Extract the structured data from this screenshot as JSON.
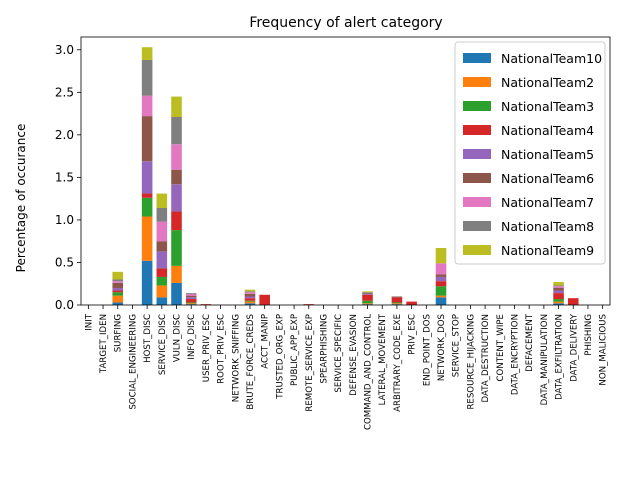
{
  "chart_data": {
    "type": "bar",
    "stacked": true,
    "title": "Frequency of alert category",
    "xlabel": "",
    "ylabel": "Percentage of occurance",
    "ylim": [
      0,
      3.15
    ],
    "yticks": [
      "0.0",
      "0.5",
      "1.0",
      "1.5",
      "2.0",
      "2.5",
      "3.0"
    ],
    "grid": false,
    "legend_position": "top-right",
    "categories": [
      "INIT",
      "TARGET_IDEN",
      "SURFING",
      "SOCIAL_ENGINEERING",
      "HOST_DISC",
      "SERVICE_DISC",
      "VULN_DISC",
      "INFO_DISC",
      "USER_PRIV_ESC",
      "ROOT_PRIV_ESC",
      "NETWORK_SNIFFING",
      "BRUTE_FORCE_CREDS",
      "ACCT_MANIP",
      "TRUSTED_ORG_EXP",
      "PUBLIC_APP_EXP",
      "REMOTE_SERVICE_EXP",
      "SPEARPHISHING",
      "SERVICE_SPECIFIC",
      "DEFENSE_EVASION",
      "COMMAND_AND_CONTROL",
      "LATERAL_MOVEMENT",
      "ARBITRARY_CODE_EXE",
      "PRIV_ESC",
      "END_POINT_DOS",
      "NETWORK_DOS",
      "SERVICE_STOP",
      "RESOURCE_HIJACKING",
      "DATA_DESTRUCTION",
      "CONTENT_WIPE",
      "DATA_ENCRYPTION",
      "DEFACEMENT",
      "DATA_MANIPULATION",
      "DATA_EXFILTRATION",
      "DATA_DELIVERY",
      "PHISHING",
      "NON_MALICIOUS"
    ],
    "series": [
      {
        "name": "NationalTeam10",
        "color": "#1f77b4",
        "values": [
          0,
          0,
          0.03,
          0,
          0.52,
          0.09,
          0.26,
          0.01,
          0,
          0,
          0,
          0.02,
          0,
          0,
          0,
          0,
          0,
          0,
          0,
          0.01,
          0,
          0.01,
          0,
          0,
          0.09,
          0,
          0,
          0,
          0,
          0,
          0,
          0,
          0.02,
          0,
          0,
          0
        ]
      },
      {
        "name": "NationalTeam2",
        "color": "#ff7f0e",
        "values": [
          0,
          0,
          0.08,
          0,
          0.52,
          0.14,
          0.2,
          0.01,
          0,
          0,
          0,
          0.02,
          0,
          0,
          0,
          0,
          0,
          0,
          0,
          0.01,
          0,
          0.01,
          0,
          0,
          0.02,
          0,
          0,
          0,
          0,
          0,
          0,
          0,
          0.02,
          0,
          0,
          0
        ]
      },
      {
        "name": "NationalTeam3",
        "color": "#2ca02c",
        "values": [
          0,
          0,
          0.04,
          0,
          0.22,
          0.1,
          0.42,
          0.01,
          0,
          0,
          0,
          0.01,
          0,
          0,
          0,
          0,
          0,
          0,
          0,
          0.03,
          0,
          0.01,
          0,
          0,
          0.11,
          0,
          0,
          0,
          0,
          0,
          0,
          0,
          0.03,
          0,
          0,
          0
        ]
      },
      {
        "name": "NationalTeam4",
        "color": "#d62728",
        "values": [
          0,
          0,
          0.02,
          0,
          0.05,
          0.1,
          0.22,
          0.04,
          0.01,
          0,
          0,
          0.03,
          0.12,
          0,
          0,
          0.01,
          0,
          0,
          0,
          0.07,
          0,
          0.06,
          0.04,
          0,
          0.06,
          0,
          0,
          0,
          0,
          0,
          0,
          0,
          0.07,
          0.08,
          0,
          0
        ]
      },
      {
        "name": "NationalTeam5",
        "color": "#9467bd",
        "values": [
          0,
          0,
          0.03,
          0,
          0.38,
          0.2,
          0.32,
          0.02,
          0,
          0,
          0,
          0.02,
          0,
          0,
          0,
          0,
          0,
          0,
          0,
          0.01,
          0,
          0,
          0,
          0,
          0.05,
          0,
          0,
          0,
          0,
          0,
          0,
          0,
          0.03,
          0,
          0,
          0
        ]
      },
      {
        "name": "NationalTeam6",
        "color": "#8c564b",
        "values": [
          0,
          0,
          0.06,
          0,
          0.53,
          0.12,
          0.17,
          0.02,
          0,
          0,
          0,
          0.03,
          0,
          0,
          0,
          0,
          0,
          0,
          0,
          0.01,
          0,
          0.01,
          0,
          0,
          0.03,
          0,
          0,
          0,
          0,
          0,
          0,
          0,
          0.03,
          0,
          0,
          0
        ]
      },
      {
        "name": "NationalTeam7",
        "color": "#e377c2",
        "values": [
          0,
          0,
          0.02,
          0,
          0.24,
          0.23,
          0.3,
          0.02,
          0,
          0,
          0,
          0.02,
          0,
          0,
          0,
          0,
          0,
          0,
          0,
          0,
          0,
          0,
          0,
          0,
          0.13,
          0,
          0,
          0,
          0,
          0,
          0,
          0,
          0.02,
          0,
          0,
          0
        ]
      },
      {
        "name": "NationalTeam8",
        "color": "#7f7f7f",
        "values": [
          0,
          0,
          0.02,
          0,
          0.42,
          0.16,
          0.32,
          0.01,
          0,
          0,
          0,
          0.01,
          0,
          0,
          0,
          0,
          0,
          0,
          0,
          0.01,
          0,
          0,
          0,
          0,
          0,
          0,
          0,
          0,
          0,
          0,
          0,
          0,
          0.01,
          0,
          0,
          0
        ]
      },
      {
        "name": "NationalTeam9",
        "color": "#bcbd22",
        "values": [
          0,
          0,
          0.09,
          0,
          0.15,
          0.17,
          0.24,
          0,
          0,
          0,
          0,
          0.02,
          0,
          0,
          0,
          0,
          0,
          0,
          0,
          0.01,
          0,
          0,
          0,
          0,
          0.18,
          0,
          0,
          0,
          0,
          0,
          0,
          0,
          0.04,
          0,
          0,
          0
        ]
      }
    ]
  }
}
